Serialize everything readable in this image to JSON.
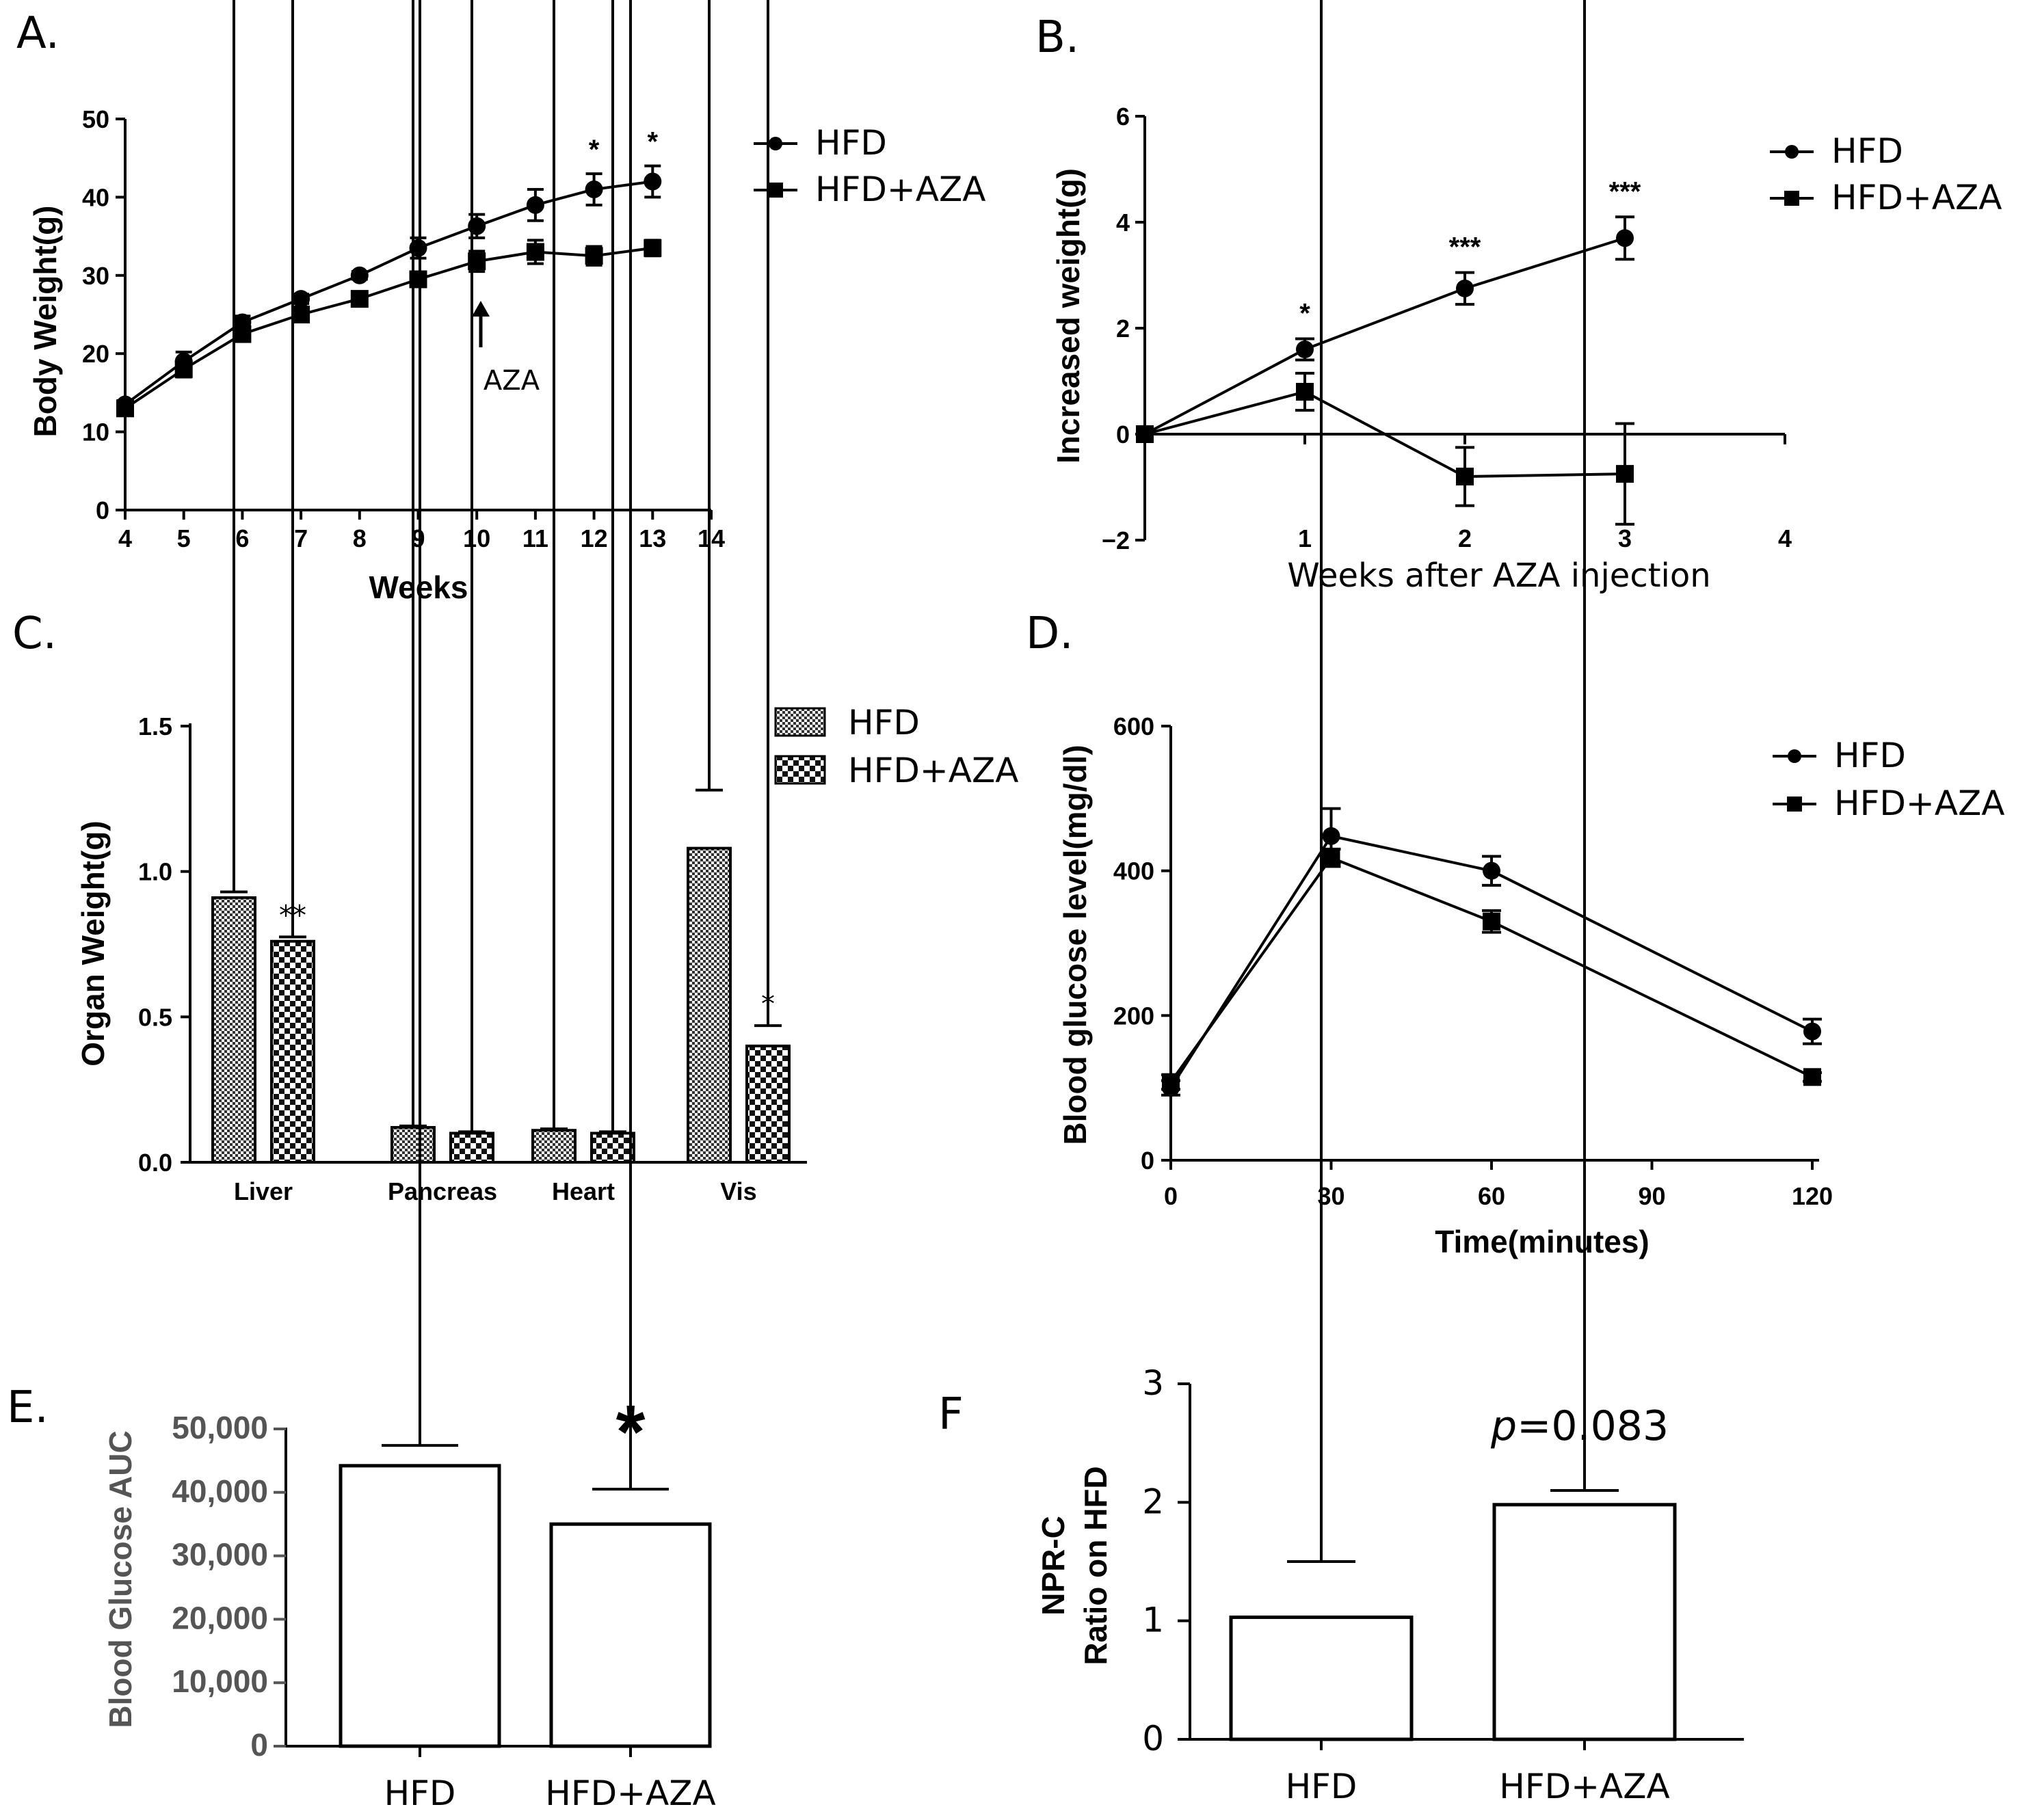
{
  "chart_data": [
    {
      "id": "A",
      "panel_label": "A.",
      "type": "line",
      "xlabel": "Weeks",
      "ylabel": "Body Weight(g)",
      "xlim": [
        4,
        14
      ],
      "ylim": [
        0,
        50
      ],
      "xticks": [
        "4",
        "5",
        "6",
        "7",
        "8",
        "9",
        "10",
        "11",
        "12",
        "13",
        "14"
      ],
      "yticks": [
        "0",
        "10",
        "20",
        "30",
        "40",
        "50"
      ],
      "x": [
        4,
        5,
        6,
        7,
        8,
        9,
        10,
        11,
        12,
        13
      ],
      "series": [
        {
          "name": "HFD",
          "marker": "circle",
          "values": [
            13.5,
            19,
            24,
            27,
            30,
            33.5,
            36.3,
            39,
            41,
            42
          ],
          "errors": [
            0.5,
            1.2,
            0.8,
            0.6,
            0.5,
            1.3,
            1.5,
            2,
            2,
            2
          ]
        },
        {
          "name": "HFD+AZA",
          "marker": "square",
          "values": [
            13,
            18,
            22.5,
            25,
            27,
            29.5,
            31.8,
            33,
            32.5,
            33.5
          ],
          "errors": [
            0.5,
            1,
            0.8,
            0.6,
            0.5,
            0.8,
            1.3,
            1.5,
            1.2,
            1
          ]
        }
      ],
      "significance": [
        {
          "x": 12,
          "label": "*"
        },
        {
          "x": 13,
          "label": "*"
        }
      ],
      "annotation": {
        "text": "AZA",
        "x": 10
      }
    },
    {
      "id": "B",
      "panel_label": "B.",
      "type": "line",
      "xlabel": "Weeks after AZA injection",
      "ylabel": "Increased weight(g)",
      "xlim": [
        0,
        4
      ],
      "ylim": [
        -2,
        6
      ],
      "xticks": [
        "1",
        "2",
        "3",
        "4"
      ],
      "yticks": [
        "−2",
        "0",
        "2",
        "4",
        "6"
      ],
      "x": [
        0,
        1,
        2,
        3
      ],
      "series": [
        {
          "name": "HFD",
          "marker": "circle",
          "values": [
            0,
            1.6,
            2.75,
            3.7
          ],
          "errors": [
            0,
            0.2,
            0.3,
            0.4
          ]
        },
        {
          "name": "HFD+AZA",
          "marker": "square",
          "values": [
            0,
            0.8,
            -0.8,
            -0.75
          ],
          "errors": [
            0,
            0.35,
            0.55,
            0.95
          ]
        }
      ],
      "significance": [
        {
          "x": 1,
          "label": "*"
        },
        {
          "x": 2,
          "label": "***"
        },
        {
          "x": 3,
          "label": "***"
        }
      ]
    },
    {
      "id": "C",
      "panel_label": "C.",
      "type": "bar",
      "xlabel": "",
      "ylabel": "Organ Weight(g)",
      "ylim": [
        0,
        1.5
      ],
      "yticks": [
        "0.0",
        "0.5",
        "1.0",
        "1.5"
      ],
      "categories": [
        "Liver",
        "Pancreas",
        "Heart",
        "Vis"
      ],
      "series": [
        {
          "name": "HFD",
          "pattern": "fine",
          "values": [
            0.91,
            0.12,
            0.11,
            1.08
          ],
          "errors": [
            0.02,
            0.005,
            0.005,
            0.2
          ]
        },
        {
          "name": "HFD+AZA",
          "pattern": "checker",
          "values": [
            0.76,
            0.1,
            0.1,
            0.4
          ],
          "errors": [
            0.015,
            0.005,
            0.005,
            0.07
          ]
        }
      ],
      "significance": [
        {
          "category": "Liver",
          "label": "**"
        },
        {
          "category": "Vis",
          "label": "*"
        }
      ]
    },
    {
      "id": "D",
      "panel_label": "D.",
      "type": "line",
      "xlabel": "Time(minutes)",
      "ylabel": "Blood glucose level(mg/dl)",
      "xlim": [
        0,
        120
      ],
      "ylim": [
        0,
        600
      ],
      "xticks": [
        "0",
        "30",
        "60",
        "90",
        "120"
      ],
      "yticks": [
        "0",
        "200",
        "400",
        "600"
      ],
      "x": [
        0,
        30,
        60,
        90,
        120
      ],
      "series": [
        {
          "name": "HFD",
          "marker": "circle",
          "values": [
            100,
            448,
            400,
            null,
            178
          ],
          "errors": [
            10,
            38,
            20,
            null,
            17
          ]
        },
        {
          "name": "HFD+AZA",
          "marker": "square",
          "values": [
            108,
            418,
            330,
            null,
            115
          ],
          "errors": [
            10,
            12,
            15,
            null,
            6
          ]
        }
      ]
    },
    {
      "id": "E",
      "panel_label": "E.",
      "type": "bar",
      "xlabel": "",
      "ylabel": "Blood Glucose AUC",
      "ylim": [
        0,
        50000
      ],
      "yticks": [
        "0",
        "10,000",
        "20,000",
        "30,000",
        "40,000",
        "50,000"
      ],
      "categories": [
        "HFD",
        "HFD+AZA"
      ],
      "values": [
        44200,
        35000
      ],
      "errors": [
        3200,
        5500
      ],
      "significance": [
        {
          "category": "HFD+AZA",
          "label": "*"
        }
      ]
    },
    {
      "id": "F",
      "panel_label": "F",
      "type": "bar",
      "xlabel": "",
      "ylabel_lines": [
        "NPR-C",
        "Ratio on HFD"
      ],
      "ylim": [
        0,
        3
      ],
      "yticks": [
        "0",
        "1",
        "2",
        "3"
      ],
      "categories": [
        "HFD",
        "HFD+AZA"
      ],
      "values": [
        1.03,
        1.98
      ],
      "errors": [
        0.47,
        0.12
      ],
      "annotation": {
        "text_prefix": "p",
        "text_value": "=0.083"
      }
    }
  ]
}
